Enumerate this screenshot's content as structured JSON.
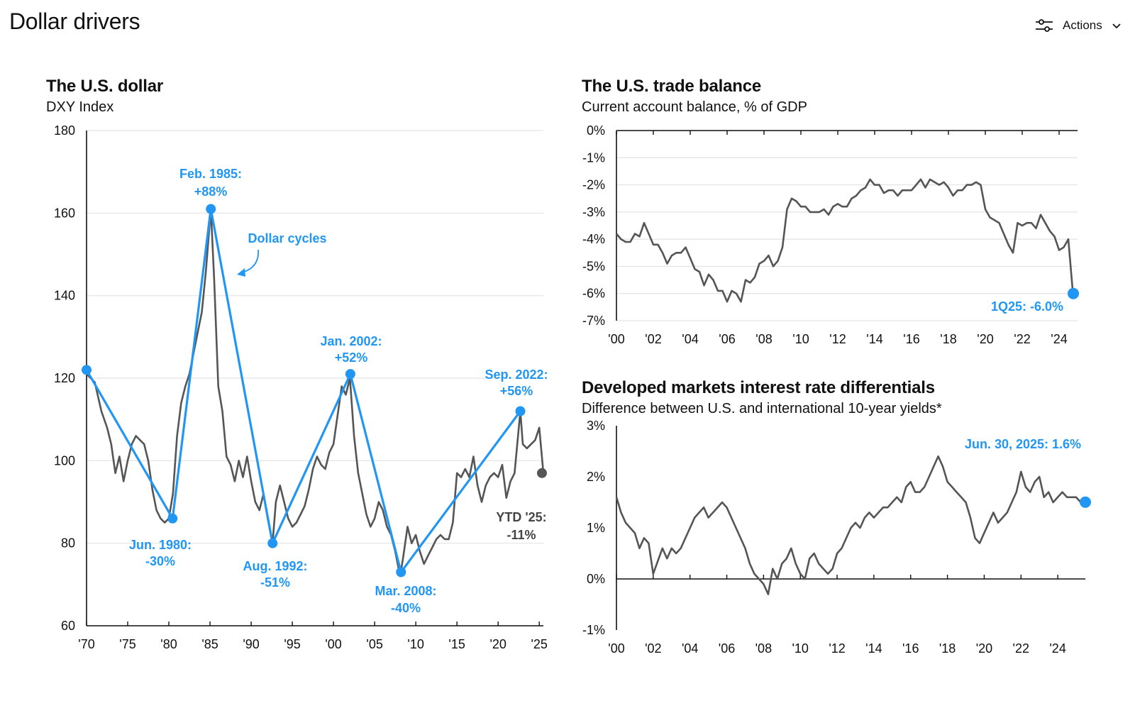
{
  "page": {
    "title": "Dollar drivers"
  },
  "toolbar": {
    "actions_label": "Actions",
    "actions_icon": "sliders-icon",
    "chevron_icon": "chevron-down-icon"
  },
  "colors": {
    "accent": "#2196f3",
    "series": "#555555",
    "grid": "#e3e3e3"
  },
  "chart_data": [
    {
      "id": "dxy",
      "type": "line",
      "title": "The U.S. dollar",
      "subtitle": "DXY Index",
      "x_ticks": [
        "'70",
        "'75",
        "'80",
        "'85",
        "'90",
        "'95",
        "'00",
        "'05",
        "'10",
        "'15",
        "'20",
        "'25"
      ],
      "x_tick_values": [
        1970,
        1975,
        1980,
        1985,
        1990,
        1995,
        2000,
        2005,
        2010,
        2015,
        2020,
        2025
      ],
      "y_ticks": [
        "60",
        "80",
        "100",
        "120",
        "140",
        "160",
        "180"
      ],
      "xlim": [
        1970,
        2025.5
      ],
      "ylim": [
        60,
        180
      ],
      "grid": true,
      "series": [
        {
          "x": [
            1970.0,
            1971.0,
            1971.8,
            1972.5,
            1973.0,
            1973.5,
            1974.0,
            1974.5,
            1975.0,
            1975.5,
            1976.0,
            1976.5,
            1977.0,
            1977.5,
            1978.0,
            1978.5,
            1979.0,
            1979.5,
            1980.0,
            1980.5,
            1981.0,
            1981.5,
            1982.0,
            1982.5,
            1983.0,
            1983.5,
            1984.0,
            1984.5,
            1985.1,
            1985.5,
            1986.0,
            1986.5,
            1987.0,
            1987.5,
            1988.0,
            1988.5,
            1989.0,
            1989.5,
            1990.0,
            1990.5,
            1991.0,
            1991.5,
            1992.0,
            1992.6,
            1993.0,
            1993.5,
            1994.0,
            1994.5,
            1995.0,
            1995.5,
            1996.0,
            1996.5,
            1997.0,
            1997.5,
            1998.0,
            1998.5,
            1999.0,
            1999.5,
            2000.0,
            2000.5,
            2001.0,
            2001.5,
            2002.0,
            2002.5,
            2003.0,
            2003.5,
            2004.0,
            2004.5,
            2005.0,
            2005.5,
            2006.0,
            2006.5,
            2007.0,
            2007.5,
            2008.1,
            2008.5,
            2009.0,
            2009.5,
            2010.0,
            2010.5,
            2011.0,
            2011.5,
            2012.0,
            2012.5,
            2013.0,
            2013.5,
            2014.0,
            2014.5,
            2015.0,
            2015.5,
            2016.0,
            2016.5,
            2017.0,
            2017.5,
            2018.0,
            2018.5,
            2019.0,
            2019.5,
            2020.0,
            2020.5,
            2021.0,
            2021.5,
            2022.0,
            2022.7,
            2023.0,
            2023.5,
            2024.0,
            2024.5,
            2025.0,
            2025.5
          ],
          "y": [
            121,
            119,
            112,
            108,
            104,
            97,
            101,
            95,
            100,
            104,
            106,
            105,
            104,
            100,
            93,
            88,
            86,
            85,
            86,
            92,
            106,
            114,
            118,
            121,
            126,
            131,
            136,
            146,
            161,
            144,
            118,
            112,
            101,
            99,
            95,
            100,
            96,
            101,
            95,
            90,
            88,
            92,
            86,
            80,
            90,
            94,
            90,
            86,
            84,
            85,
            87,
            89,
            93,
            98,
            101,
            99,
            98,
            102,
            104,
            111,
            118,
            116,
            120,
            106,
            97,
            92,
            87,
            84,
            86,
            90,
            88,
            84,
            82,
            78,
            72,
            77,
            84,
            80,
            82,
            78,
            75,
            77,
            79,
            81,
            82,
            81,
            81,
            85,
            97,
            96,
            98,
            96,
            101,
            94,
            90,
            94,
            96,
            97,
            96,
            99,
            91,
            95,
            97,
            112,
            104,
            103,
            104,
            105,
            108,
            97
          ]
        }
      ],
      "annotations": [
        {
          "label": "Feb. 1985:",
          "value": "+88%"
        },
        {
          "label": "Jun. 1980:",
          "value": "-30%"
        },
        {
          "label": "Aug. 1992:",
          "value": "-51%"
        },
        {
          "label": "Jan. 2002:",
          "value": "+52%"
        },
        {
          "label": "Mar. 2008:",
          "value": "-40%"
        },
        {
          "label": "Sep. 2022:",
          "value": "+56%"
        },
        {
          "label": "YTD '25:",
          "value": "-11%"
        },
        {
          "label": "Dollar cycles"
        }
      ],
      "cycles": {
        "name": "Dollar cycles",
        "x": [
          1970.0,
          1980.45,
          1985.1,
          1992.6,
          2002.05,
          2008.2,
          2022.7
        ],
        "y": [
          122,
          86,
          161,
          80,
          121,
          73,
          112
        ]
      },
      "end_point": {
        "x": 2025.5,
        "y": 97
      }
    },
    {
      "id": "trade",
      "type": "line",
      "title": "The U.S. trade balance",
      "subtitle": "Current account balance, % of GDP",
      "x_ticks": [
        "'00",
        "'02",
        "'04",
        "'06",
        "'08",
        "'10",
        "'12",
        "'14",
        "'16",
        "'18",
        "'20",
        "'22",
        "'24"
      ],
      "x_tick_values": [
        2000,
        2002,
        2004,
        2006,
        2008,
        2010,
        2012,
        2014,
        2016,
        2018,
        2020,
        2022,
        2024
      ],
      "y_ticks": [
        "0%",
        "-1%",
        "-2%",
        "-3%",
        "-4%",
        "-5%",
        "-6%",
        "-7%"
      ],
      "xlim": [
        2000,
        2025
      ],
      "ylim": [
        -7,
        0
      ],
      "grid": true,
      "series": [
        {
          "x": [
            2000.0,
            2000.25,
            2000.5,
            2000.75,
            2001.0,
            2001.25,
            2001.5,
            2001.75,
            2002.0,
            2002.25,
            2002.5,
            2002.75,
            2003.0,
            2003.25,
            2003.5,
            2003.75,
            2004.0,
            2004.25,
            2004.5,
            2004.75,
            2005.0,
            2005.25,
            2005.5,
            2005.75,
            2006.0,
            2006.25,
            2006.5,
            2006.75,
            2007.0,
            2007.25,
            2007.5,
            2007.75,
            2008.0,
            2008.25,
            2008.5,
            2008.75,
            2009.0,
            2009.25,
            2009.5,
            2009.75,
            2010.0,
            2010.25,
            2010.5,
            2010.75,
            2011.0,
            2011.25,
            2011.5,
            2011.75,
            2012.0,
            2012.25,
            2012.5,
            2012.75,
            2013.0,
            2013.25,
            2013.5,
            2013.75,
            2014.0,
            2014.25,
            2014.5,
            2014.75,
            2015.0,
            2015.25,
            2015.5,
            2015.75,
            2016.0,
            2016.25,
            2016.5,
            2016.75,
            2017.0,
            2017.25,
            2017.5,
            2017.75,
            2018.0,
            2018.25,
            2018.5,
            2018.75,
            2019.0,
            2019.25,
            2019.5,
            2019.75,
            2020.0,
            2020.25,
            2020.5,
            2020.75,
            2021.0,
            2021.25,
            2021.5,
            2021.75,
            2022.0,
            2022.25,
            2022.5,
            2022.75,
            2023.0,
            2023.25,
            2023.5,
            2023.75,
            2024.0,
            2024.25,
            2024.5,
            2024.75,
            2025.0
          ],
          "y": [
            -3.8,
            -4.0,
            -4.1,
            -4.1,
            -3.8,
            -3.9,
            -3.4,
            -3.8,
            -4.2,
            -4.2,
            -4.5,
            -4.9,
            -4.6,
            -4.5,
            -4.5,
            -4.3,
            -4.7,
            -5.1,
            -5.2,
            -5.7,
            -5.3,
            -5.5,
            -5.9,
            -5.9,
            -6.3,
            -5.9,
            -6.0,
            -6.3,
            -5.5,
            -5.6,
            -5.4,
            -4.9,
            -4.8,
            -4.6,
            -5.0,
            -4.8,
            -4.3,
            -2.9,
            -2.5,
            -2.6,
            -2.8,
            -2.8,
            -3.0,
            -3.0,
            -3.0,
            -2.9,
            -3.1,
            -2.8,
            -2.7,
            -2.8,
            -2.8,
            -2.5,
            -2.4,
            -2.2,
            -2.1,
            -1.8,
            -2.0,
            -2.0,
            -2.3,
            -2.2,
            -2.2,
            -2.4,
            -2.2,
            -2.2,
            -2.2,
            -2.0,
            -1.8,
            -2.1,
            -1.8,
            -1.9,
            -2.0,
            -1.9,
            -2.1,
            -2.4,
            -2.2,
            -2.2,
            -2.0,
            -2.0,
            -1.9,
            -2.0,
            -2.9,
            -3.2,
            -3.3,
            -3.4,
            -3.8,
            -4.2,
            -4.5,
            -3.4,
            -3.5,
            -3.4,
            -3.4,
            -3.6,
            -3.1,
            -3.4,
            -3.7,
            -3.9,
            -4.4,
            -4.3,
            -4.0,
            -6.0,
            -6.0
          ]
        }
      ],
      "annotations": [
        {
          "label": "1Q25: -6.0%"
        }
      ],
      "end_point": {
        "x": 2025.0,
        "y": -6.0
      }
    },
    {
      "id": "rates",
      "type": "line",
      "title": "Developed markets interest rate differentials",
      "subtitle": "Difference between U.S. and international 10-year yields*",
      "x_ticks": [
        "'00",
        "'02",
        "'04",
        "'06",
        "'08",
        "'10",
        "'12",
        "'14",
        "'16",
        "'18",
        "'20",
        "'22",
        "'24"
      ],
      "x_tick_values": [
        2000,
        2002,
        2004,
        2006,
        2008,
        2010,
        2012,
        2014,
        2016,
        2018,
        2020,
        2022,
        2024
      ],
      "y_ticks": [
        "3%",
        "2%",
        "1%",
        "0%",
        "-1%"
      ],
      "xlim": [
        2000,
        2025.5
      ],
      "ylim": [
        -1,
        3
      ],
      "grid": false,
      "series": [
        {
          "x": [
            2000.0,
            2000.25,
            2000.5,
            2000.75,
            2001.0,
            2001.25,
            2001.5,
            2001.75,
            2002.0,
            2002.2,
            2002.5,
            2002.75,
            2003.0,
            2003.25,
            2003.5,
            2003.75,
            2004.0,
            2004.25,
            2004.5,
            2004.75,
            2005.0,
            2005.25,
            2005.5,
            2005.75,
            2006.0,
            2006.25,
            2006.5,
            2006.75,
            2007.0,
            2007.25,
            2007.5,
            2007.75,
            2008.0,
            2008.25,
            2008.5,
            2008.75,
            2009.0,
            2009.25,
            2009.5,
            2009.75,
            2010.0,
            2010.25,
            2010.5,
            2010.75,
            2011.0,
            2011.25,
            2011.5,
            2011.75,
            2012.0,
            2012.25,
            2012.5,
            2012.75,
            2013.0,
            2013.25,
            2013.5,
            2013.75,
            2014.0,
            2014.25,
            2014.5,
            2014.75,
            2015.0,
            2015.25,
            2015.5,
            2015.75,
            2016.0,
            2016.25,
            2016.5,
            2016.75,
            2017.0,
            2017.25,
            2017.5,
            2017.75,
            2018.0,
            2018.25,
            2018.5,
            2018.75,
            2019.0,
            2019.25,
            2019.5,
            2019.75,
            2020.0,
            2020.25,
            2020.5,
            2020.75,
            2021.0,
            2021.25,
            2021.5,
            2021.75,
            2022.0,
            2022.25,
            2022.5,
            2022.75,
            2023.0,
            2023.25,
            2023.5,
            2023.75,
            2024.0,
            2024.25,
            2024.5,
            2024.75,
            2025.0,
            2025.25,
            2025.5
          ],
          "y": [
            1.6,
            1.3,
            1.1,
            1.0,
            0.9,
            0.6,
            0.8,
            0.7,
            0.1,
            0.3,
            0.6,
            0.4,
            0.6,
            0.5,
            0.6,
            0.8,
            1.0,
            1.2,
            1.3,
            1.4,
            1.2,
            1.3,
            1.4,
            1.5,
            1.4,
            1.2,
            1.0,
            0.8,
            0.6,
            0.3,
            0.1,
            0.0,
            -0.1,
            -0.3,
            0.2,
            0.0,
            0.3,
            0.4,
            0.6,
            0.3,
            0.1,
            0.0,
            0.4,
            0.5,
            0.3,
            0.2,
            0.1,
            0.2,
            0.5,
            0.6,
            0.8,
            1.0,
            1.1,
            1.0,
            1.2,
            1.3,
            1.2,
            1.3,
            1.4,
            1.4,
            1.5,
            1.6,
            1.5,
            1.8,
            1.9,
            1.7,
            1.7,
            1.8,
            2.0,
            2.2,
            2.4,
            2.2,
            1.9,
            1.8,
            1.7,
            1.6,
            1.5,
            1.2,
            0.8,
            0.7,
            0.9,
            1.1,
            1.3,
            1.1,
            1.2,
            1.3,
            1.5,
            1.7,
            2.1,
            1.8,
            1.7,
            1.9,
            2.0,
            1.6,
            1.7,
            1.5,
            1.6,
            1.7,
            1.6,
            1.6,
            1.6,
            1.5,
            1.6
          ]
        }
      ],
      "annotations": [
        {
          "label": "Jun. 30, 2025: 1.6%"
        }
      ],
      "end_point": {
        "x": 2025.5,
        "y": 1.6
      }
    }
  ]
}
